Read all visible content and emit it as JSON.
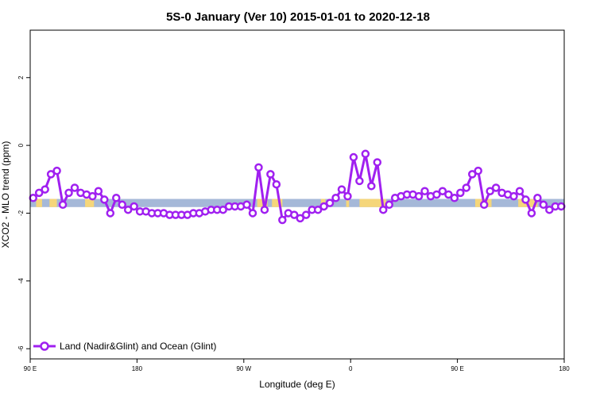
{
  "chart_data": {
    "type": "line",
    "title": "5S-0 January (Ver 10)   2015-01-01 to 2020-12-18",
    "xlabel": "Longitude (deg E)",
    "ylabel": "XCO2 - MLO trend (ppm)",
    "xlim": [
      90,
      450
    ],
    "ylim": [
      -6.3,
      3.4
    ],
    "x_ticks": [
      {
        "value": 90,
        "label": "90 E"
      },
      {
        "value": 162,
        "label": "180"
      },
      {
        "value": 234,
        "label": "90 W"
      },
      {
        "value": 306,
        "label": "0"
      },
      {
        "value": 378,
        "label": "90 E"
      },
      {
        "value": 450,
        "label": "180"
      }
    ],
    "y_ticks": [
      {
        "value": 2,
        "label": "2"
      },
      {
        "value": 0,
        "label": "0"
      },
      {
        "value": -2,
        "label": "-2"
      },
      {
        "value": -4,
        "label": "-4"
      },
      {
        "value": -6,
        "label": "-6"
      }
    ],
    "grid": false,
    "legend_position": "bottom-left",
    "land_ocean_band": {
      "ymin": -1.82,
      "ymax": -1.58,
      "ocean_color": "#a5b8d8",
      "land_color": "#f5d67a",
      "land_segments": [
        [
          94,
          98
        ],
        [
          103,
          108
        ],
        [
          127,
          133
        ],
        [
          243,
          250
        ],
        [
          253,
          260
        ],
        [
          286,
          289
        ],
        [
          303,
          305
        ],
        [
          312,
          330
        ],
        [
          390,
          395
        ],
        [
          396,
          401
        ],
        [
          419,
          432
        ]
      ]
    },
    "series": [
      {
        "name": "Land (Nadir&Glint) and Ocean (Glint)",
        "color": "#a020f0",
        "x": [
          92,
          96,
          100,
          104,
          108,
          112,
          116,
          120,
          124,
          128,
          132,
          136,
          140,
          144,
          148,
          152,
          156,
          160,
          164,
          168,
          172,
          176,
          180,
          184,
          188,
          192,
          196,
          200,
          204,
          208,
          212,
          216,
          220,
          224,
          228,
          232,
          236,
          240,
          244,
          248,
          252,
          256,
          260,
          264,
          268,
          272,
          276,
          280,
          284,
          288,
          292,
          296,
          300,
          304,
          308,
          312,
          316,
          320,
          324,
          328,
          332,
          336,
          340,
          344,
          348,
          352,
          356,
          360,
          364,
          368,
          372,
          376,
          380,
          384,
          388,
          392,
          396,
          400,
          404,
          408,
          412,
          416,
          420,
          424,
          428,
          432,
          436,
          440,
          444,
          448
        ],
        "y": [
          -1.55,
          -1.4,
          -1.3,
          -0.85,
          -0.75,
          -1.75,
          -1.4,
          -1.25,
          -1.4,
          -1.45,
          -1.5,
          -1.35,
          -1.6,
          -2.0,
          -1.55,
          -1.75,
          -1.9,
          -1.8,
          -1.95,
          -1.95,
          -2.0,
          -2.0,
          -2.0,
          -2.05,
          -2.05,
          -2.05,
          -2.05,
          -2.0,
          -2.0,
          -1.95,
          -1.9,
          -1.9,
          -1.9,
          -1.8,
          -1.8,
          -1.8,
          -1.75,
          -2.0,
          -0.65,
          -1.9,
          -0.85,
          -1.15,
          -2.2,
          -2.0,
          -2.05,
          -2.15,
          -2.05,
          -1.9,
          -1.9,
          -1.8,
          -1.7,
          -1.55,
          -1.3,
          -1.5,
          -0.35,
          -1.05,
          -0.25,
          -1.2,
          -0.5,
          -1.9,
          -1.75,
          -1.55,
          -1.5,
          -1.45,
          -1.45,
          -1.5,
          -1.35,
          -1.5,
          -1.45,
          -1.35,
          -1.45,
          -1.55,
          -1.4,
          -1.25,
          -0.85,
          -0.75,
          -1.75,
          -1.35,
          -1.25,
          -1.4,
          -1.45,
          -1.5,
          -1.35,
          -1.6,
          -2.0,
          -1.55,
          -1.75,
          -1.9,
          -1.8,
          -1.8
        ]
      }
    ]
  }
}
